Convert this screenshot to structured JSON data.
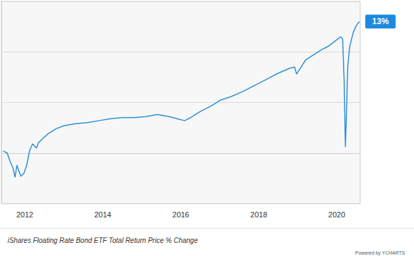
{
  "chart_data": {
    "type": "line",
    "title": "iShares Floating Rate Bond ETF Total Return Price % Change",
    "source": "Powered by YCHARTS",
    "color": "#2b8fd6",
    "grid": true,
    "tick_labels": "x",
    "x": [
      2011.45,
      2011.55,
      2011.62,
      2011.7,
      2011.75,
      2011.8,
      2011.85,
      2011.9,
      2011.98,
      2012.05,
      2012.12,
      2012.2,
      2012.3,
      2012.35,
      2012.45,
      2012.6,
      2012.8,
      2013.0,
      2013.3,
      2013.6,
      2013.9,
      2014.2,
      2014.5,
      2014.8,
      2015.1,
      2015.4,
      2015.7,
      2015.9,
      2016.1,
      2016.25,
      2016.5,
      2016.8,
      2017.0,
      2017.3,
      2017.6,
      2017.9,
      2018.2,
      2018.5,
      2018.8,
      2018.92,
      2018.97,
      2019.05,
      2019.2,
      2019.4,
      2019.6,
      2019.8,
      2020.0,
      2020.1,
      2020.15,
      2020.19,
      2020.22,
      2020.25,
      2020.28,
      2020.33,
      2020.42,
      2020.5,
      2020.58
    ],
    "values": [
      0.2,
      0,
      -0.8,
      -1.5,
      -2.4,
      -1.2,
      -1.8,
      -2.3,
      -2.0,
      -1.2,
      0.2,
      0.9,
      0.5,
      1.0,
      1.4,
      1.9,
      2.4,
      2.7,
      2.9,
      3.0,
      3.2,
      3.4,
      3.5,
      3.5,
      3.6,
      3.8,
      3.6,
      3.4,
      3.2,
      3.5,
      4.1,
      4.7,
      5.2,
      5.6,
      6.1,
      6.7,
      7.3,
      7.9,
      8.4,
      8.5,
      7.8,
      8.3,
      9.2,
      9.7,
      10.2,
      10.6,
      11.2,
      11.5,
      11.3,
      7.0,
      0.6,
      4.0,
      8.5,
      10.5,
      11.9,
      12.6,
      13.0
    ],
    "xlim": [
      2011.4,
      2020.6
    ],
    "xticks": [
      2012,
      2014,
      2016,
      2018,
      2020
    ],
    "ylim": [
      -5,
      15
    ],
    "yticks": [
      -5,
      0,
      5,
      10,
      15
    ],
    "annotations": [
      {
        "label": "13%",
        "value": 13
      }
    ]
  }
}
